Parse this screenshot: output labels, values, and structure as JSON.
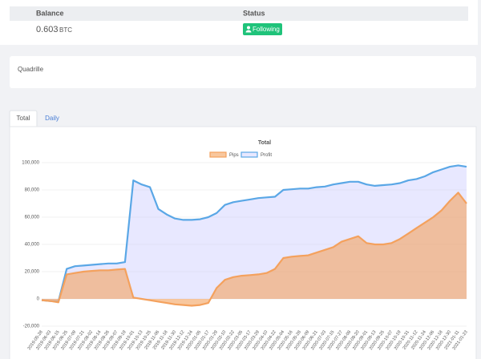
{
  "account": {
    "balance_header": "Balance",
    "status_header": "Status",
    "balance": "0.603",
    "balance_unit": "BTC",
    "status": "Following"
  },
  "strategy": {
    "name": "Quadrille"
  },
  "tabs": [
    "Total",
    "Daily"
  ],
  "chart_data": {
    "type": "area",
    "title": "Total",
    "categories": [
      "2019-05-28",
      "2019-06-03",
      "2019-06-15",
      "2019-06-25",
      "2019-07-09",
      "2019-07-21",
      "2019-08-02",
      "2019-08-14",
      "2019-08-26",
      "2019-09-07",
      "2019-09-19",
      "2019-10-01",
      "2019-10-13",
      "2019-10-25",
      "2019-11-06",
      "2019-11-18",
      "2019-11-30",
      "2019-12-12",
      "2019-12-24",
      "2020-01-05",
      "2020-01-17",
      "2020-01-29",
      "2020-02-10",
      "2020-02-22",
      "2020-03-05",
      "2020-03-17",
      "2020-03-29",
      "2020-04-10",
      "2020-04-22",
      "2020-05-04",
      "2020-05-16",
      "2020-05-28",
      "2020-06-09",
      "2020-06-21",
      "2020-07-03",
      "2020-07-15",
      "2020-07-27",
      "2020-08-08",
      "2020-08-20",
      "2020-09-01",
      "2020-09-13",
      "2020-09-25",
      "2020-10-07",
      "2020-10-19",
      "2020-10-31",
      "2020-11-12",
      "2020-11-24",
      "2020-12-06",
      "2020-12-18",
      "2020-12-30",
      "2021-01-11",
      "2021-01-23"
    ],
    "series": [
      {
        "name": "Pips",
        "color": "#f4a15d",
        "values": [
          -1000,
          -1500,
          -2500,
          18000,
          19000,
          20000,
          20500,
          21000,
          21000,
          21500,
          22000,
          1000,
          0,
          -1000,
          -2000,
          -3000,
          -4000,
          -4500,
          -5000,
          -4500,
          -3000,
          8000,
          14000,
          16000,
          17000,
          17500,
          18000,
          19000,
          22000,
          30000,
          31000,
          31500,
          32000,
          34000,
          36000,
          38000,
          42000,
          44000,
          46000,
          41000,
          40000,
          40000,
          41000,
          44000,
          48000,
          52000,
          56000,
          60000,
          65000,
          72000,
          78000,
          70000
        ]
      },
      {
        "name": "Profit",
        "color": "#5aa7e6",
        "values": [
          -1000,
          -1500,
          -2000,
          22000,
          24000,
          24500,
          25000,
          25500,
          26000,
          26000,
          27000,
          87000,
          84000,
          82000,
          66000,
          62000,
          59000,
          58000,
          58000,
          58500,
          60000,
          63000,
          69000,
          71000,
          72000,
          73000,
          74000,
          74500,
          75000,
          80000,
          80500,
          81000,
          81000,
          82000,
          82500,
          84000,
          85000,
          86000,
          86000,
          84000,
          83000,
          83500,
          84000,
          85000,
          87000,
          88000,
          90000,
          93000,
          95000,
          97000,
          98000,
          97000
        ]
      }
    ],
    "ylim": [
      -20000,
      100000
    ],
    "yticks": [
      {
        "value": -20000,
        "label": "-20,000"
      },
      0,
      {
        "value": 20000,
        "label": "20,000"
      },
      {
        "value": 40000,
        "label": "40,000"
      },
      {
        "value": 60000,
        "label": "60,000"
      },
      {
        "value": 80000,
        "label": "80,000"
      },
      {
        "value": 100000,
        "label": "100,000"
      }
    ],
    "grid": true
  }
}
